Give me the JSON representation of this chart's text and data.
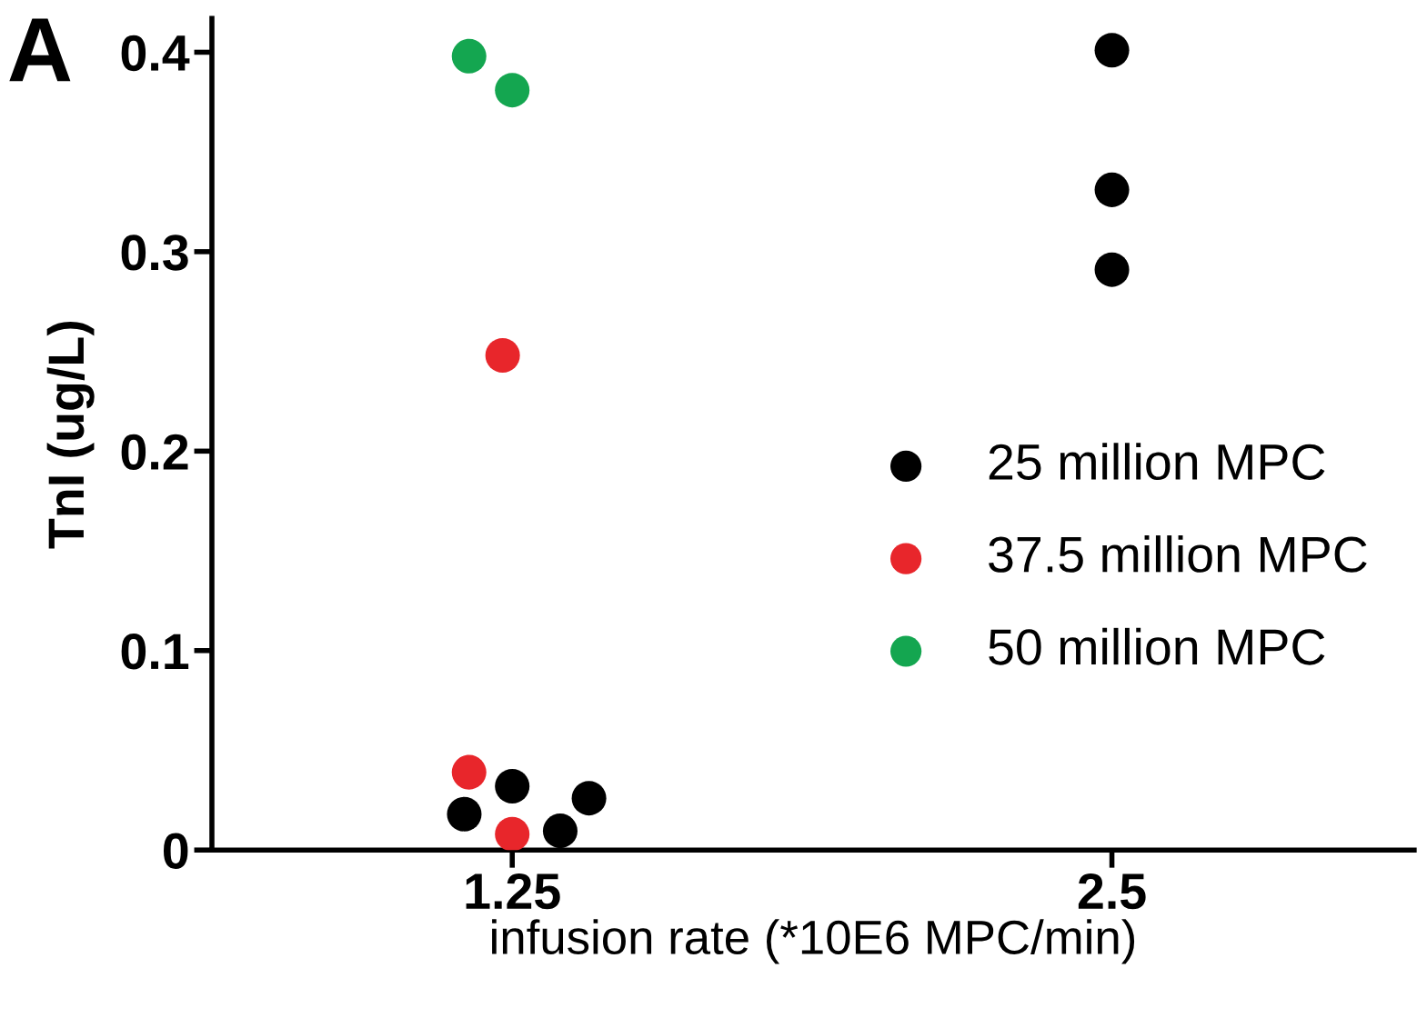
{
  "chart_data": {
    "type": "scatter",
    "ylabel": "TnI (ug/L)",
    "xlabel": "infusion rate (*10E6 MPC/min)",
    "annotations": [
      "A"
    ],
    "xlim": [
      0.624,
      3.13
    ],
    "xticks": [
      1.25,
      2.5
    ],
    "ylim": [
      0,
      0.417
    ],
    "yticks": [
      0,
      0.1,
      0.2,
      0.3,
      0.4
    ],
    "series": [
      {
        "name": "25 million MPC",
        "color": "#000000",
        "x": [
          1.15,
          1.25,
          1.35,
          1.41,
          2.5,
          2.5,
          2.5
        ],
        "values": [
          0.018,
          0.032,
          0.0096,
          0.026,
          0.401,
          0.331,
          0.291
        ]
      },
      {
        "name": "37.5 million MPC",
        "color": "#e8262b",
        "x": [
          1.16,
          1.23,
          1.25
        ],
        "values": [
          0.039,
          0.248,
          0.008
        ]
      },
      {
        "name": "50 million MPC",
        "color": "#14a650",
        "x": [
          1.16,
          1.25
        ],
        "values": [
          0.398,
          0.381
        ]
      }
    ],
    "marker": "circle",
    "legend": "right",
    "grid": false
  }
}
